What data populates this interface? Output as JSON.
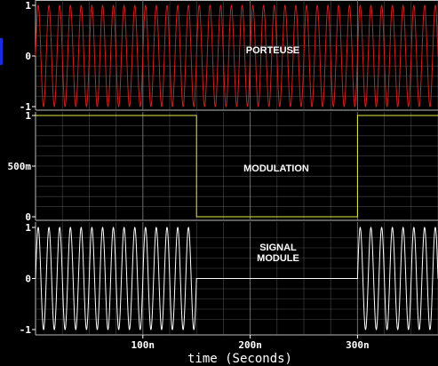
{
  "chart_data": {
    "type": "line",
    "xlabel": "time (Seconds)",
    "xlim": [
      0,
      3.75e-07
    ],
    "x_ticks": [
      {
        "value": 1e-07,
        "label": "100n"
      },
      {
        "value": 2e-07,
        "label": "200n"
      },
      {
        "value": 3e-07,
        "label": "300n"
      }
    ],
    "panels": [
      {
        "title": [
          "PORTEUSE"
        ],
        "ylim": [
          -1,
          1
        ],
        "y_ticks": [
          {
            "value": 1,
            "label": "1"
          },
          {
            "value": 0,
            "label": "0"
          },
          {
            "value": -1,
            "label": "-1"
          }
        ],
        "color": "#cc1f1f",
        "series": {
          "kind": "sine",
          "amplitude": 1,
          "frequency_hz": 100000000
        }
      },
      {
        "title": [
          "MODULATION"
        ],
        "ylim": [
          0,
          1
        ],
        "y_ticks": [
          {
            "value": 1,
            "label": "1"
          },
          {
            "value": 0.5,
            "label": "500m"
          },
          {
            "value": 0,
            "label": "0"
          }
        ],
        "color": "#e8e84a",
        "series": {
          "kind": "step",
          "x": [
            0,
            1.5e-07,
            1.5e-07,
            3e-07,
            3e-07,
            3.75e-07
          ],
          "y": [
            1,
            1,
            0,
            0,
            1,
            1
          ]
        }
      },
      {
        "title": [
          "SIGNAL",
          "MODULE"
        ],
        "ylim": [
          -1,
          1
        ],
        "y_ticks": [
          {
            "value": 1,
            "label": "1"
          },
          {
            "value": 0,
            "label": "0"
          },
          {
            "value": -1,
            "label": "-1"
          }
        ],
        "color": "#ffffff",
        "series": {
          "kind": "modulated_sine",
          "amplitude": 1,
          "frequency_hz": 100000000,
          "on_intervals": [
            [
              0,
              1.5e-07
            ],
            [
              3e-07,
              3.75e-07
            ]
          ]
        }
      }
    ]
  }
}
